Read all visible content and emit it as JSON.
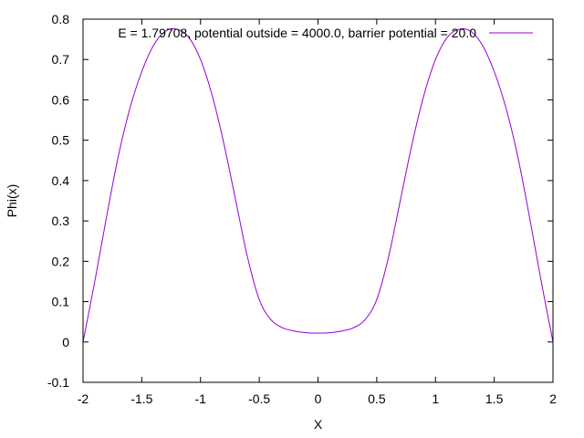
{
  "chart_data": {
    "type": "line",
    "xlabel": "X",
    "ylabel": "Phi(x)",
    "xlim": [
      -2,
      2
    ],
    "ylim": [
      -0.1,
      0.8
    ],
    "xticks": [
      -2,
      -1.5,
      -1,
      -0.5,
      0,
      0.5,
      1,
      1.5,
      2
    ],
    "xtick_labels": [
      "-2",
      "-1.5",
      "-1",
      "-0.5",
      "0",
      "0.5",
      "1",
      "1.5",
      "2"
    ],
    "yticks": [
      -0.1,
      0,
      0.1,
      0.2,
      0.3,
      0.4,
      0.5,
      0.6,
      0.7,
      0.8
    ],
    "ytick_labels": [
      "-0.1",
      "0",
      "0.1",
      "0.2",
      "0.3",
      "0.4",
      "0.5",
      "0.6",
      "0.7",
      "0.8"
    ],
    "grid": false,
    "legend_position": "top-right",
    "series": [
      {
        "name": "E = 1.79708, potential outside = 4000.0, barrier potential = 20.0",
        "color": "#9400d3",
        "x": [
          -2.0,
          -1.9,
          -1.8,
          -1.7,
          -1.6,
          -1.5,
          -1.4,
          -1.3,
          -1.2,
          -1.1,
          -1.0,
          -0.9,
          -0.8,
          -0.7,
          -0.6,
          -0.5,
          -0.4,
          -0.3,
          -0.2,
          -0.1,
          0.0,
          0.1,
          0.2,
          0.3,
          0.4,
          0.5,
          0.6,
          0.7,
          0.8,
          0.9,
          1.0,
          1.1,
          1.2,
          1.3,
          1.4,
          1.5,
          1.6,
          1.7,
          1.8,
          1.9,
          2.0
        ],
        "y": [
          0.0,
          0.15,
          0.31,
          0.46,
          0.58,
          0.67,
          0.735,
          0.77,
          0.775,
          0.755,
          0.7,
          0.61,
          0.49,
          0.35,
          0.21,
          0.105,
          0.055,
          0.035,
          0.027,
          0.023,
          0.022,
          0.023,
          0.027,
          0.035,
          0.055,
          0.105,
          0.21,
          0.35,
          0.49,
          0.61,
          0.7,
          0.755,
          0.775,
          0.77,
          0.735,
          0.67,
          0.58,
          0.46,
          0.31,
          0.15,
          0.0
        ]
      }
    ]
  }
}
